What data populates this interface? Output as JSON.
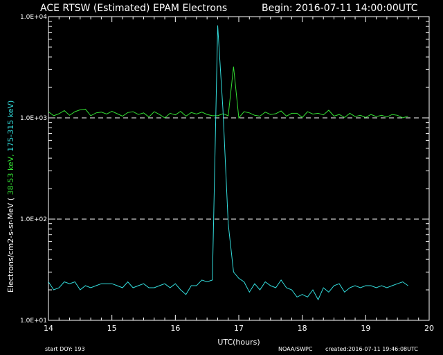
{
  "header": {
    "title": "ACE RTSW (Estimated) EPAM Electrons",
    "begin": "Begin: 2016-07-11 14:00:00UTC"
  },
  "footer": {
    "start_doy": "start DOY:  193",
    "credit": "NOAA/SWPC",
    "created": "created:2016-07-11 19:46:08UTC"
  },
  "colors": {
    "background": "#000000",
    "axes": "#ffffff",
    "series_low": "#33dd33",
    "series_high": "#33dddd",
    "threshold": "#ffffff"
  },
  "chart_data": {
    "type": "line",
    "title": "ACE RTSW (Estimated) EPAM Electrons",
    "xlabel": "UTC(hours)",
    "ylabel_prefix": "Electrons/cm2-s-sr-MeV  (",
    "ylabel_low": " 38-53 keV,",
    "ylabel_high": "  175-315 keV)",
    "xlim": [
      14,
      20
    ],
    "ylim": [
      10,
      10000
    ],
    "yscale": "log",
    "x_ticks": [
      "14",
      "15",
      "16",
      "17",
      "18",
      "19",
      "20"
    ],
    "y_ticks": [
      "1.0E+01",
      "1.0E+02",
      "1.0E+03",
      "1.0E+04"
    ],
    "thresholds": [
      1000,
      100
    ],
    "threshold_style": "dashed",
    "series": [
      {
        "label": "38-53 keV",
        "color": "#33dd33",
        "x": [
          14.0,
          14.083,
          14.167,
          14.25,
          14.333,
          14.417,
          14.5,
          14.583,
          14.667,
          14.75,
          14.833,
          14.917,
          15.0,
          15.083,
          15.167,
          15.25,
          15.333,
          15.417,
          15.5,
          15.583,
          15.667,
          15.75,
          15.833,
          15.917,
          16.0,
          16.083,
          16.167,
          16.25,
          16.333,
          16.417,
          16.5,
          16.583,
          16.667,
          16.75,
          16.833,
          16.917,
          17.0,
          17.083,
          17.167,
          17.25,
          17.333,
          17.417,
          17.5,
          17.583,
          17.667,
          17.75,
          17.833,
          17.917,
          18.0,
          18.083,
          18.167,
          18.25,
          18.333,
          18.417,
          18.5,
          18.583,
          18.667,
          18.75,
          18.833,
          18.917,
          19.0,
          19.083,
          19.167,
          19.25,
          19.333,
          19.417,
          19.5,
          19.583,
          19.667
        ],
        "y": [
          1150,
          1050,
          1100,
          1180,
          1060,
          1150,
          1200,
          1220,
          1050,
          1120,
          1140,
          1090,
          1160,
          1100,
          1040,
          1130,
          1150,
          1080,
          1120,
          1020,
          1150,
          1080,
          1000,
          1110,
          1070,
          1160,
          1040,
          1130,
          1090,
          1140,
          1080,
          1050,
          1050,
          1100,
          1050,
          3200,
          1000,
          1150,
          1120,
          1060,
          1040,
          1140,
          1080,
          1100,
          1170,
          1040,
          1110,
          1110,
          1010,
          1150,
          1090,
          1110,
          1070,
          1190,
          1040,
          1080,
          1010,
          1110,
          1030,
          1060,
          1010,
          1080,
          1030,
          1060,
          1020,
          1080,
          1060,
          1000,
          1040
        ]
      },
      {
        "label": "175-315 keV",
        "color": "#33dddd",
        "x": [
          14.0,
          14.083,
          14.167,
          14.25,
          14.333,
          14.417,
          14.5,
          14.583,
          14.667,
          14.75,
          14.833,
          14.917,
          15.0,
          15.083,
          15.167,
          15.25,
          15.333,
          15.417,
          15.5,
          15.583,
          15.667,
          15.75,
          15.833,
          15.917,
          16.0,
          16.083,
          16.167,
          16.25,
          16.333,
          16.417,
          16.5,
          16.583,
          16.667,
          16.75,
          16.833,
          16.917,
          17.0,
          17.083,
          17.167,
          17.25,
          17.333,
          17.417,
          17.5,
          17.583,
          17.667,
          17.75,
          17.833,
          17.917,
          18.0,
          18.083,
          18.167,
          18.25,
          18.333,
          18.417,
          18.5,
          18.583,
          18.667,
          18.75,
          18.833,
          18.917,
          19.0,
          19.083,
          19.167,
          19.25,
          19.333,
          19.417,
          19.5,
          19.583,
          19.667
        ],
        "y": [
          24,
          20,
          21,
          24,
          23,
          24,
          20,
          22,
          21,
          22,
          23,
          23,
          23,
          22,
          21,
          24,
          21,
          22,
          23,
          21,
          21,
          22,
          23,
          21,
          23,
          20,
          18,
          22,
          22,
          25,
          24,
          25,
          8200,
          1200,
          90,
          30,
          26,
          24,
          19,
          23,
          20,
          24,
          22,
          21,
          25,
          21,
          20,
          17,
          18,
          17,
          20,
          16,
          21,
          19,
          22,
          23,
          19,
          21,
          22,
          21,
          22,
          22,
          21,
          22,
          21,
          22,
          23,
          24,
          22
        ]
      }
    ]
  }
}
